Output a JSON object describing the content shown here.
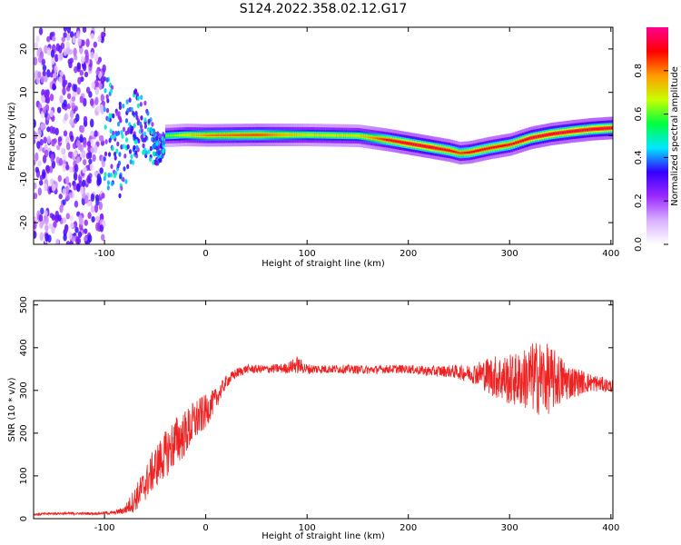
{
  "figure_title": "S124.2022.358.02.12.G17",
  "colors": {
    "snr_line": "#ee2222",
    "frame": "#000000",
    "background": "#ffffff",
    "colormap_stops": [
      "#ffffff",
      "#d8b0ff",
      "#9a28ff",
      "#3500ff",
      "#00e8ff",
      "#00ff40",
      "#c8ff00",
      "#ff9a00",
      "#ff0000",
      "#ff0090"
    ]
  },
  "chart_data": [
    {
      "type": "heatmap",
      "title": "",
      "xlabel": "Height of straight line (km)",
      "ylabel": "Frequency (Hz)",
      "xlim": [
        -170,
        402
      ],
      "ylim": [
        -25,
        25
      ],
      "xticks": [
        -100,
        0,
        100,
        200,
        300,
        400
      ],
      "yticks": [
        -20,
        -10,
        0,
        10,
        20
      ],
      "colorbar": {
        "label": "Normalized spectral amplitude",
        "range": [
          0,
          1
        ],
        "ticks": [
          "0.0",
          "0.2",
          "0.4",
          "0.6",
          "0.8"
        ]
      },
      "ridge": {
        "description_units": "frequency (Hz) of peak amplitude vs height (km)",
        "x": [
          -40,
          -20,
          0,
          50,
          100,
          150,
          180,
          200,
          220,
          240,
          250,
          260,
          280,
          300,
          320,
          340,
          360,
          380,
          400
        ],
        "y": [
          0.0,
          0.2,
          0.1,
          0.2,
          0.2,
          0.0,
          -1.0,
          -1.8,
          -2.6,
          -3.4,
          -4.0,
          -3.8,
          -2.8,
          -2.0,
          -0.5,
          0.4,
          1.0,
          1.5,
          1.8
        ],
        "peak_amplitude": [
          0.6,
          0.7,
          0.8,
          0.85,
          0.7,
          0.7,
          0.9,
          0.95,
          0.95,
          0.9,
          0.85,
          0.9,
          0.9,
          0.9,
          0.95,
          0.95,
          0.95,
          0.95,
          0.95
        ]
      },
      "noise_region": {
        "x": [
          -170,
          -100
        ],
        "y": [
          -25,
          25
        ],
        "amplitude_range": [
          0.05,
          0.35
        ]
      },
      "transition_region": {
        "x": [
          -100,
          -40
        ],
        "y": [
          -12,
          12
        ],
        "amplitude_range": [
          0.2,
          0.5
        ]
      }
    },
    {
      "type": "line",
      "title": "",
      "xlabel": "Height of straight line (km)",
      "ylabel": "SNR (10 * v/v)",
      "xlim": [
        -170,
        402
      ],
      "ylim": [
        0,
        510
      ],
      "xticks": [
        -100,
        0,
        100,
        200,
        300,
        400
      ],
      "yticks": [
        0,
        100,
        200,
        300,
        400,
        500
      ],
      "series": [
        {
          "x": [
            -170,
            -150,
            -130,
            -110,
            -90,
            -80,
            -70,
            -60,
            -50,
            -40,
            -30,
            -20,
            -10,
            0,
            10,
            20,
            30,
            40,
            60,
            80,
            90,
            100,
            120,
            140,
            160,
            180,
            200,
            220,
            240,
            260,
            270,
            280,
            290,
            300,
            310,
            320,
            330,
            340,
            350,
            360,
            370,
            380,
            390,
            400
          ],
          "values": [
            10,
            12,
            12,
            12,
            14,
            20,
            45,
            80,
            120,
            150,
            180,
            200,
            230,
            250,
            280,
            320,
            340,
            350,
            350,
            352,
            360,
            350,
            350,
            350,
            348,
            350,
            350,
            345,
            345,
            340,
            340,
            335,
            330,
            325,
            325,
            330,
            330,
            325,
            325,
            320,
            320,
            318,
            315,
            310
          ],
          "noise_amplitude": [
            3,
            3,
            3,
            3,
            4,
            10,
            30,
            40,
            50,
            55,
            60,
            55,
            50,
            40,
            25,
            15,
            12,
            10,
            10,
            12,
            20,
            12,
            10,
            10,
            10,
            10,
            10,
            12,
            14,
            20,
            30,
            45,
            55,
            60,
            65,
            80,
            90,
            80,
            60,
            40,
            30,
            22,
            18,
            15
          ]
        }
      ]
    }
  ]
}
